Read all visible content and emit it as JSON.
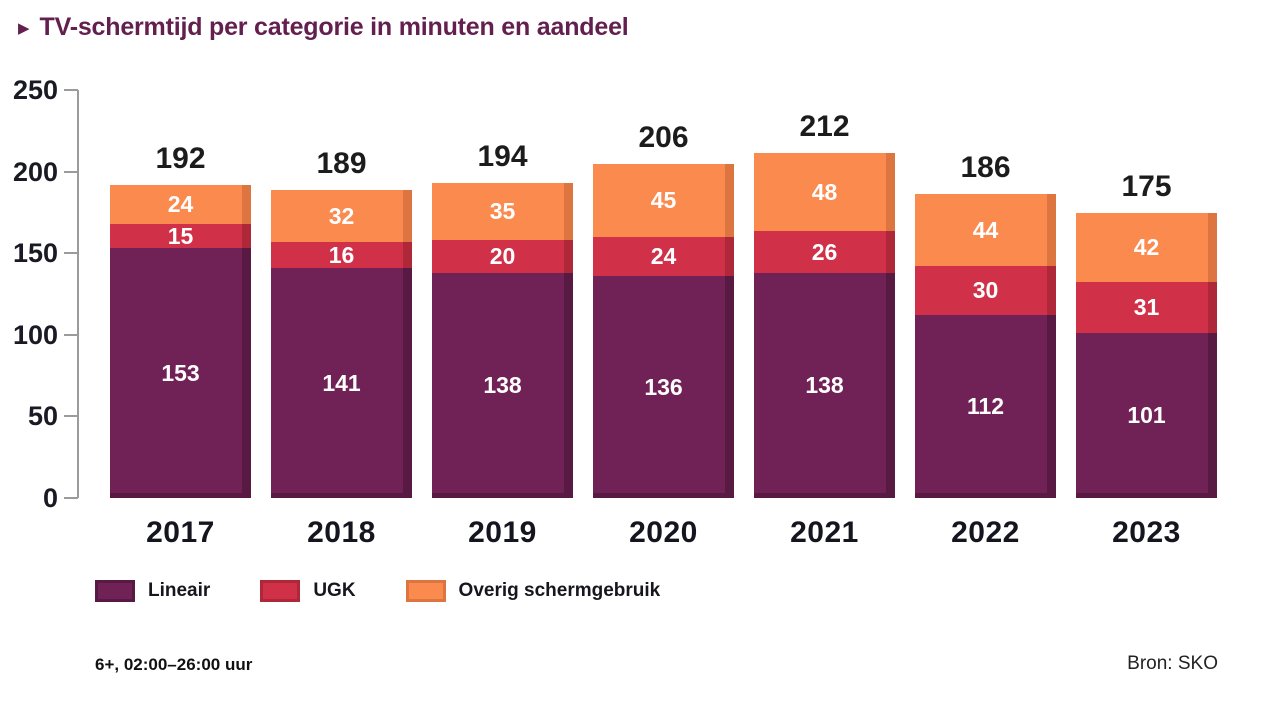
{
  "title": {
    "bullet": "▶",
    "text": "TV-schermtijd per categorie in minuten en aandeel"
  },
  "footer": {
    "note": "6+, 02:00–26:00 uur",
    "source": "Bron: SKO"
  },
  "colors": {
    "title": "#63204e",
    "axis": "#9b9b9b",
    "text_dark": "#1a1a24",
    "background": "#ffffff"
  },
  "chart_data": {
    "type": "bar",
    "stacked": true,
    "categories": [
      "2017",
      "2018",
      "2019",
      "2020",
      "2021",
      "2022",
      "2023"
    ],
    "series": [
      {
        "name": "Lineair",
        "color": "#702256",
        "edge_color": "#581a43",
        "values": [
          153,
          141,
          138,
          136,
          138,
          112,
          101
        ]
      },
      {
        "name": "UGK",
        "color": "#d03148",
        "edge_color": "#ae2839",
        "values": [
          15,
          16,
          20,
          24,
          26,
          30,
          31
        ]
      },
      {
        "name": "Overig schermgebruik",
        "color": "#fa8a4e",
        "edge_color": "#dd7540",
        "values": [
          24,
          32,
          35,
          45,
          48,
          44,
          42
        ]
      }
    ],
    "totals": [
      192,
      189,
      194,
      206,
      212,
      186,
      175
    ],
    "xlabel": "",
    "ylabel": "",
    "ylim": [
      0,
      250
    ],
    "yticks": [
      0,
      50,
      100,
      150,
      200,
      250
    ],
    "grid": false,
    "legend_position": "bottom"
  }
}
